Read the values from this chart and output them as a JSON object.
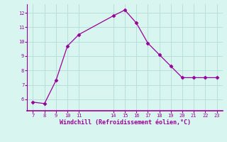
{
  "x": [
    7,
    8,
    9,
    10,
    11,
    14,
    15,
    16,
    17,
    18,
    19,
    20,
    21,
    22,
    23
  ],
  "y": [
    5.8,
    5.7,
    7.3,
    9.7,
    10.5,
    11.8,
    12.2,
    11.3,
    9.9,
    9.1,
    8.3,
    7.5,
    7.5,
    7.5,
    7.5
  ],
  "line_color": "#990099",
  "marker": "D",
  "marker_size": 2.5,
  "background_color": "#d8f5f0",
  "grid_color": "#b8e0da",
  "axis_color": "#990099",
  "tick_color": "#990099",
  "xlabel": "Windchill (Refroidissement éolien,°C)",
  "xlabel_color": "#990099",
  "xlim": [
    6.5,
    23.5
  ],
  "ylim": [
    5.2,
    12.6
  ],
  "xticks": [
    7,
    8,
    9,
    10,
    11,
    14,
    15,
    16,
    17,
    18,
    19,
    20,
    21,
    22,
    23
  ],
  "yticks": [
    6,
    7,
    8,
    9,
    10,
    11,
    12
  ]
}
